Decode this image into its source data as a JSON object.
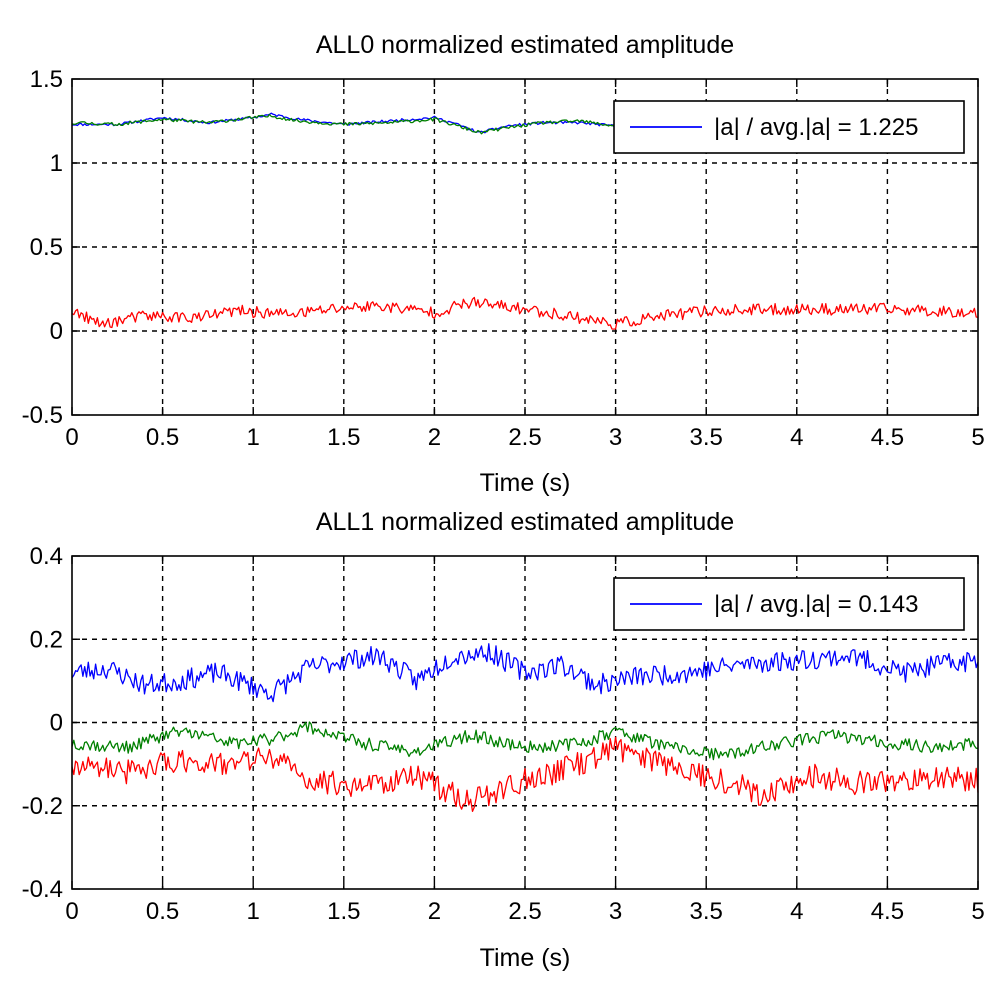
{
  "chart_data": [
    {
      "type": "line",
      "title": "ALL0 normalized estimated amplitude",
      "xlabel": "Time (s)",
      "ylabel": "",
      "xlim": [
        0,
        5
      ],
      "ylim": [
        -0.5,
        1.5
      ],
      "xticks": [
        0,
        0.5,
        1,
        1.5,
        2,
        2.5,
        3,
        3.5,
        4,
        4.5,
        5
      ],
      "xtick_labels": [
        "0",
        "0.5",
        "1",
        "1.5",
        "2",
        "2.5",
        "3",
        "3.5",
        "4",
        "4.5",
        "5"
      ],
      "yticks": [
        -0.5,
        0,
        0.5,
        1,
        1.5
      ],
      "ytick_labels": [
        "-0.5",
        "0",
        "0.5",
        "1",
        "1.5"
      ],
      "grid": true,
      "legend": {
        "position": "top-right",
        "entries": [
          {
            "label": "|a| / avg.|a| = 1.225",
            "color": "#0000ff"
          }
        ]
      },
      "noise_seed": 11,
      "series": [
        {
          "name": "blue",
          "color": "#0000ff",
          "noise": 0.008,
          "x": [
            0,
            0.25,
            0.5,
            0.75,
            1.0,
            1.1,
            1.25,
            1.5,
            1.75,
            2.0,
            2.1,
            2.25,
            2.4,
            2.6,
            2.8,
            3.0
          ],
          "y": [
            1.23,
            1.23,
            1.27,
            1.24,
            1.27,
            1.29,
            1.26,
            1.23,
            1.25,
            1.27,
            1.24,
            1.18,
            1.22,
            1.24,
            1.24,
            1.22
          ]
        },
        {
          "name": "green",
          "color": "#008000",
          "noise": 0.01,
          "x": [
            0,
            0.25,
            0.5,
            0.75,
            1.0,
            1.1,
            1.25,
            1.5,
            1.75,
            2.0,
            2.1,
            2.25,
            2.4,
            2.6,
            2.8,
            3.0
          ],
          "y": [
            1.24,
            1.23,
            1.26,
            1.24,
            1.27,
            1.28,
            1.25,
            1.23,
            1.24,
            1.26,
            1.23,
            1.18,
            1.21,
            1.24,
            1.25,
            1.22
          ]
        },
        {
          "name": "red",
          "color": "#ff0000",
          "noise": 0.035,
          "x": [
            0,
            0.15,
            0.4,
            0.7,
            0.9,
            1.2,
            1.5,
            1.7,
            2.0,
            2.2,
            2.5,
            2.8,
            3.0,
            3.2,
            3.5,
            4.0,
            4.5,
            5.0
          ],
          "y": [
            0.12,
            0.04,
            0.09,
            0.08,
            0.12,
            0.1,
            0.14,
            0.15,
            0.11,
            0.17,
            0.13,
            0.08,
            0.04,
            0.08,
            0.12,
            0.13,
            0.13,
            0.11
          ]
        }
      ]
    },
    {
      "type": "line",
      "title": "ALL1 normalized estimated amplitude",
      "xlabel": "Time (s)",
      "ylabel": "",
      "xlim": [
        0,
        5
      ],
      "ylim": [
        -0.4,
        0.4
      ],
      "xticks": [
        0,
        0.5,
        1,
        1.5,
        2,
        2.5,
        3,
        3.5,
        4,
        4.5,
        5
      ],
      "xtick_labels": [
        "0",
        "0.5",
        "1",
        "1.5",
        "2",
        "2.5",
        "3",
        "3.5",
        "4",
        "4.5",
        "5"
      ],
      "yticks": [
        -0.4,
        -0.2,
        0,
        0.2,
        0.4
      ],
      "ytick_labels": [
        "-0.4",
        "-0.2",
        "0",
        "0.2",
        "0.4"
      ],
      "grid": true,
      "legend": {
        "position": "top-right",
        "entries": [
          {
            "label": "|a| / avg.|a| = 0.143",
            "color": "#0000ff"
          }
        ]
      },
      "noise_seed": 23,
      "series": [
        {
          "name": "blue",
          "color": "#0000ff",
          "noise": 0.025,
          "x": [
            0,
            0.2,
            0.4,
            0.6,
            0.8,
            1.1,
            1.3,
            1.5,
            1.7,
            1.9,
            2.1,
            2.3,
            2.5,
            2.7,
            2.9,
            3.1,
            3.4,
            3.7,
            4.0,
            4.3,
            4.6,
            4.8,
            5.0
          ],
          "y": [
            0.12,
            0.13,
            0.09,
            0.1,
            0.12,
            0.07,
            0.13,
            0.15,
            0.16,
            0.1,
            0.16,
            0.17,
            0.12,
            0.14,
            0.09,
            0.11,
            0.12,
            0.14,
            0.15,
            0.16,
            0.12,
            0.14,
            0.15
          ]
        },
        {
          "name": "green",
          "color": "#008000",
          "noise": 0.015,
          "x": [
            0,
            0.3,
            0.6,
            0.9,
            1.1,
            1.3,
            1.6,
            1.9,
            2.2,
            2.5,
            2.8,
            3.0,
            3.3,
            3.6,
            3.9,
            4.2,
            4.5,
            4.8,
            5.0
          ],
          "y": [
            -0.05,
            -0.06,
            -0.02,
            -0.05,
            -0.04,
            -0.01,
            -0.05,
            -0.07,
            -0.03,
            -0.06,
            -0.05,
            -0.02,
            -0.06,
            -0.08,
            -0.05,
            -0.03,
            -0.05,
            -0.06,
            -0.05
          ]
        },
        {
          "name": "red",
          "color": "#ff0000",
          "noise": 0.03,
          "x": [
            0,
            0.3,
            0.6,
            0.9,
            1.1,
            1.3,
            1.6,
            1.9,
            2.2,
            2.5,
            2.8,
            3.0,
            3.3,
            3.6,
            3.8,
            4.1,
            4.4,
            4.7,
            5.0
          ],
          "y": [
            -0.1,
            -0.12,
            -0.09,
            -0.1,
            -0.08,
            -0.14,
            -0.15,
            -0.13,
            -0.19,
            -0.14,
            -0.1,
            -0.06,
            -0.1,
            -0.14,
            -0.17,
            -0.13,
            -0.15,
            -0.13,
            -0.14
          ]
        }
      ]
    }
  ]
}
